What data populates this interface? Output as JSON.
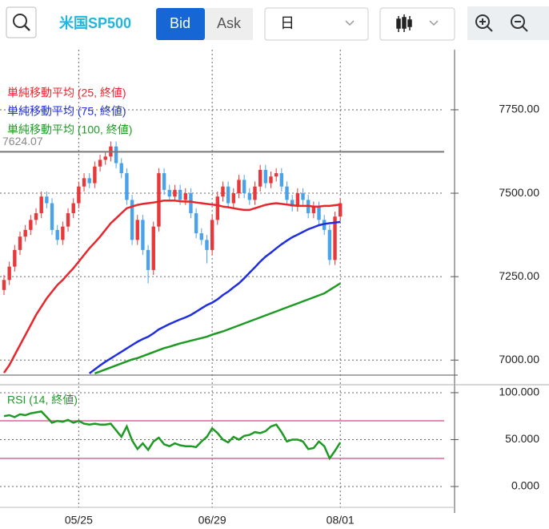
{
  "toolbar": {
    "symbol": "米国SP500",
    "bid": "Bid",
    "ask": "Ask",
    "period": "日"
  },
  "chart_data": [
    {
      "type": "candlestick",
      "categories": [
        null,
        null,
        null,
        null,
        null,
        null,
        null,
        null,
        null,
        null,
        null,
        null,
        null,
        null,
        "05/25",
        null,
        null,
        null,
        null,
        null,
        null,
        null,
        null,
        null,
        null,
        null,
        null,
        null,
        null,
        null,
        null,
        null,
        null,
        null,
        null,
        null,
        null,
        null,
        null,
        "06/29",
        null,
        null,
        null,
        null,
        null,
        null,
        null,
        null,
        null,
        null,
        null,
        null,
        null,
        null,
        null,
        null,
        null,
        null,
        null,
        null,
        null,
        null,
        null,
        "08/01"
      ],
      "open": [
        7210,
        7240,
        7280,
        7330,
        7370,
        7390,
        7420,
        7440,
        7490,
        7470,
        7390,
        7360,
        7400,
        7440,
        7470,
        7520,
        7545,
        7530,
        7580,
        7600,
        7610,
        7640,
        7590,
        7560,
        7480,
        7360,
        7420,
        7330,
        7270,
        7400,
        7560,
        7510,
        7490,
        7510,
        7480,
        7500,
        7440,
        7380,
        7360,
        7330,
        7420,
        7490,
        7520,
        7470,
        7500,
        7540,
        7500,
        7480,
        7520,
        7570,
        7530,
        7550,
        7560,
        7520,
        7480,
        7460,
        7500,
        7480,
        7440,
        7460,
        7420,
        7390,
        7300,
        7430
      ],
      "high": [
        7255,
        7295,
        7345,
        7385,
        7405,
        7435,
        7455,
        7505,
        7505,
        7485,
        7405,
        7415,
        7455,
        7485,
        7535,
        7560,
        7560,
        7595,
        7615,
        7625,
        7655,
        7655,
        7605,
        7575,
        7495,
        7435,
        7435,
        7345,
        7415,
        7575,
        7575,
        7525,
        7525,
        7525,
        7515,
        7515,
        7455,
        7395,
        7375,
        7435,
        7505,
        7535,
        7535,
        7515,
        7555,
        7555,
        7515,
        7535,
        7585,
        7585,
        7565,
        7575,
        7575,
        7535,
        7495,
        7515,
        7515,
        7495,
        7475,
        7475,
        7435,
        7405,
        7445,
        7485
      ],
      "low": [
        7195,
        7225,
        7265,
        7315,
        7355,
        7375,
        7405,
        7425,
        7455,
        7375,
        7345,
        7345,
        7385,
        7425,
        7455,
        7505,
        7515,
        7515,
        7565,
        7585,
        7595,
        7575,
        7545,
        7465,
        7345,
        7345,
        7315,
        7230,
        7255,
        7385,
        7495,
        7475,
        7475,
        7465,
        7465,
        7425,
        7365,
        7345,
        7290,
        7315,
        7405,
        7475,
        7455,
        7455,
        7485,
        7485,
        7465,
        7465,
        7505,
        7515,
        7515,
        7535,
        7505,
        7465,
        7445,
        7445,
        7465,
        7425,
        7425,
        7405,
        7375,
        7285,
        7285,
        7415
      ],
      "close": [
        7240,
        7280,
        7330,
        7370,
        7390,
        7420,
        7440,
        7490,
        7470,
        7390,
        7360,
        7400,
        7440,
        7470,
        7520,
        7545,
        7530,
        7580,
        7600,
        7610,
        7640,
        7590,
        7560,
        7480,
        7360,
        7420,
        7330,
        7270,
        7400,
        7560,
        7510,
        7490,
        7510,
        7480,
        7500,
        7440,
        7380,
        7360,
        7330,
        7420,
        7490,
        7520,
        7470,
        7500,
        7540,
        7500,
        7480,
        7520,
        7570,
        7530,
        7550,
        7560,
        7520,
        7480,
        7460,
        7500,
        7480,
        7440,
        7460,
        7420,
        7390,
        7300,
        7430,
        7470
      ],
      "up_color": "#e8383b",
      "down_color": "#4aa3ea",
      "series": [
        {
          "name": "単純移動平均 (25, 終値)",
          "color": "#e8262b",
          "values": [
            6962,
            6985,
            7015,
            7045,
            7075,
            7105,
            7135,
            7160,
            7185,
            7205,
            7225,
            7240,
            7258,
            7275,
            7295,
            7315,
            7335,
            7352,
            7370,
            7390,
            7410,
            7425,
            7440,
            7455,
            7460,
            7465,
            7468,
            7470,
            7472,
            7475,
            7478,
            7478,
            7478,
            7476,
            7475,
            7475,
            7472,
            7470,
            7468,
            7466,
            7464,
            7460,
            7458,
            7455,
            7452,
            7450,
            7450,
            7455,
            7460,
            7465,
            7468,
            7470,
            7468,
            7466,
            7464,
            7462,
            7462,
            7462,
            7460,
            7460,
            7462,
            7462,
            7464,
            7466
          ]
        },
        {
          "name": "単純移動平均 (75, 終値)",
          "color": "#1f2fe0",
          "values": [
            null,
            null,
            null,
            null,
            null,
            null,
            null,
            null,
            null,
            null,
            null,
            null,
            null,
            null,
            null,
            null,
            6960,
            6972,
            6984,
            6995,
            7005,
            7015,
            7025,
            7035,
            7045,
            7055,
            7063,
            7070,
            7080,
            7092,
            7100,
            7108,
            7115,
            7122,
            7128,
            7135,
            7145,
            7155,
            7165,
            7172,
            7182,
            7195,
            7205,
            7218,
            7230,
            7245,
            7262,
            7278,
            7295,
            7310,
            7322,
            7335,
            7347,
            7358,
            7368,
            7376,
            7384,
            7392,
            7398,
            7404,
            7408,
            7410,
            7412,
            7414
          ]
        },
        {
          "name": "単純移動平均 (100, 終値)",
          "color": "#1e9a24",
          "values": [
            null,
            null,
            null,
            null,
            null,
            null,
            null,
            null,
            null,
            null,
            null,
            null,
            null,
            null,
            null,
            null,
            null,
            6960,
            6966,
            6972,
            6978,
            6984,
            6990,
            6996,
            7002,
            7006,
            7012,
            7018,
            7024,
            7030,
            7036,
            7040,
            7045,
            7050,
            7054,
            7058,
            7062,
            7066,
            7070,
            7076,
            7081,
            7086,
            7092,
            7098,
            7104,
            7110,
            7116,
            7122,
            7128,
            7134,
            7140,
            7146,
            7152,
            7158,
            7164,
            7170,
            7176,
            7182,
            7188,
            7194,
            7200,
            7210,
            7220,
            7230
          ]
        }
      ],
      "reference_line": {
        "value": 7624.07,
        "label": "7624.07",
        "color": "#777777"
      },
      "ylim": [
        6955,
        7930
      ],
      "yticks": [
        {
          "value": 7000,
          "label": "7000.00"
        },
        {
          "value": 7250,
          "label": "7250.00"
        },
        {
          "value": 7500,
          "label": "7500.00"
        },
        {
          "value": 7750,
          "label": "7750.00"
        }
      ],
      "grid": true
    },
    {
      "type": "line",
      "series": [
        {
          "name": "RSI (14, 終値)",
          "color": "#1e9a24",
          "values": [
            75,
            76,
            74,
            77,
            76,
            78,
            79,
            80,
            74,
            68,
            70,
            69,
            71,
            68,
            70,
            67,
            66,
            67,
            66,
            66,
            67,
            60,
            53,
            64,
            49,
            40,
            46,
            39,
            48,
            52,
            45,
            43,
            46,
            44,
            43,
            43,
            42,
            48,
            53,
            62,
            57,
            50,
            47,
            53,
            50,
            54,
            55,
            58,
            57,
            59,
            64,
            66,
            58,
            48,
            50,
            50,
            48,
            40,
            41,
            48,
            43,
            30,
            38,
            47
          ]
        }
      ],
      "reference_lines": [
        70,
        30
      ],
      "reference_color": "#e0609e",
      "ylim": [
        -26.5,
        108.5
      ],
      "yticks": [
        {
          "value": 0,
          "label": "0.000"
        },
        {
          "value": 50,
          "label": "50.000"
        },
        {
          "value": 100,
          "label": "100.000"
        }
      ],
      "grid": true
    }
  ]
}
